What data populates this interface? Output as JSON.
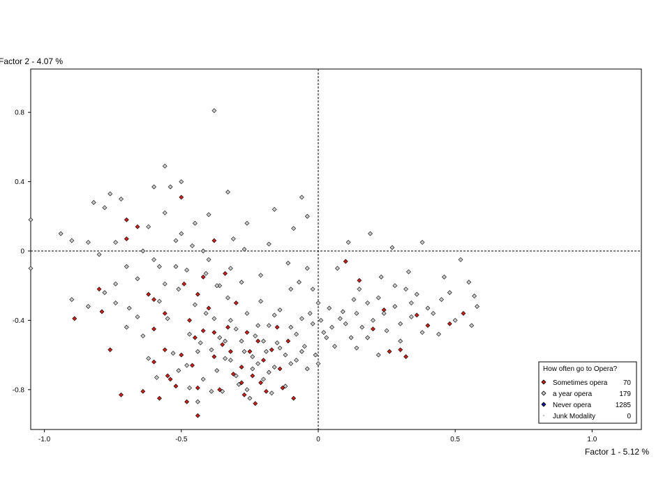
{
  "chart_data": {
    "type": "scatter",
    "xlabel": "Factor 1  -  5.12 %",
    "ylabel": "Factor 2  -  4.07 %",
    "xlim": [
      -1.05,
      1.18
    ],
    "ylim": [
      -1.03,
      1.05
    ],
    "x_ticks": [
      -1.0,
      -0.5,
      0,
      0.5,
      1.0
    ],
    "x_tick_labels": [
      "-1.0",
      "-0.5",
      "0",
      "0.5",
      "1.0"
    ],
    "y_ticks": [
      0.8,
      0.4,
      0,
      -0.4,
      -0.8
    ],
    "y_tick_labels": [
      "0.8",
      "0.4",
      "0",
      "-0.4",
      "-0.8"
    ],
    "reference_lines": {
      "x": 0,
      "y": 0,
      "style": "dashed"
    },
    "grid": false,
    "legend": {
      "title": "How often go to Opera?",
      "position": "bottom-right",
      "entries": [
        {
          "label": "Sometimes opera",
          "count": "70"
        },
        {
          "label": "a year opera",
          "count": "179"
        },
        {
          "label": "Never opera",
          "count": "1285"
        },
        {
          "label": "Junk Modality",
          "count": "0"
        }
      ]
    },
    "series": [
      {
        "name": "Sometimes opera",
        "marker": "diamond",
        "color": "#c8201c",
        "points": [
          [
            -0.89,
            -0.39
          ],
          [
            -0.8,
            -0.22
          ],
          [
            -0.79,
            -0.35
          ],
          [
            -0.76,
            -0.57
          ],
          [
            -0.72,
            -0.83
          ],
          [
            -0.7,
            0.07
          ],
          [
            -0.7,
            0.18
          ],
          [
            -0.66,
            0.14
          ],
          [
            -0.64,
            -0.81
          ],
          [
            -0.62,
            -0.25
          ],
          [
            -0.6,
            -0.28
          ],
          [
            -0.6,
            -0.64
          ],
          [
            -0.58,
            -0.85
          ],
          [
            -0.56,
            -0.57
          ],
          [
            -0.55,
            -0.72
          ],
          [
            -0.52,
            -0.78
          ],
          [
            -0.5,
            -0.6
          ],
          [
            -0.49,
            -0.19
          ],
          [
            -0.48,
            -0.87
          ],
          [
            -0.47,
            -0.4
          ],
          [
            -0.46,
            -0.66
          ],
          [
            -0.45,
            -0.5
          ],
          [
            -0.44,
            -0.79
          ],
          [
            -0.44,
            -0.95
          ],
          [
            -0.42,
            -0.46
          ],
          [
            -0.4,
            -0.33
          ],
          [
            -0.38,
            -0.61
          ],
          [
            -0.38,
            0.06
          ],
          [
            -0.36,
            -0.8
          ],
          [
            -0.35,
            -0.54
          ],
          [
            -0.34,
            -0.13
          ],
          [
            -0.33,
            -0.44
          ],
          [
            -0.32,
            -0.58
          ],
          [
            -0.31,
            -0.71
          ],
          [
            -0.28,
            -0.67
          ],
          [
            -0.27,
            -0.83
          ],
          [
            -0.26,
            -0.47
          ],
          [
            -0.25,
            -0.58
          ],
          [
            -0.24,
            -0.72
          ],
          [
            -0.23,
            -0.88
          ],
          [
            -0.22,
            -0.52
          ],
          [
            -0.21,
            -0.76
          ],
          [
            -0.2,
            -0.63
          ],
          [
            -0.19,
            -0.81
          ],
          [
            -0.17,
            -0.57
          ],
          [
            -0.15,
            -0.44
          ],
          [
            -0.14,
            -0.68
          ],
          [
            -0.13,
            -0.79
          ],
          [
            -0.11,
            -0.52
          ],
          [
            -0.09,
            -0.85
          ],
          [
            -0.5,
            0.31
          ],
          [
            -0.56,
            -0.36
          ],
          [
            -0.44,
            -0.25
          ],
          [
            -0.3,
            -0.3
          ],
          [
            0.15,
            -0.17
          ],
          [
            0.26,
            -0.58
          ],
          [
            0.24,
            -0.34
          ],
          [
            0.3,
            -0.57
          ],
          [
            0.32,
            -0.61
          ],
          [
            0.36,
            -0.37
          ],
          [
            0.4,
            -0.43
          ],
          [
            0.48,
            -0.42
          ],
          [
            0.53,
            -0.36
          ],
          [
            -0.6,
            -0.45
          ],
          [
            -0.54,
            -0.74
          ],
          [
            -0.38,
            -0.47
          ],
          [
            -0.28,
            -0.76
          ],
          [
            -0.42,
            -0.15
          ],
          [
            0.1,
            -0.06
          ],
          [
            0.2,
            -0.45
          ]
        ]
      },
      {
        "name": "a year opera",
        "marker": "diamond",
        "color": "#c8c8c8",
        "points": [
          [
            -1.05,
            0.18
          ],
          [
            -1.05,
            -0.1
          ],
          [
            -0.94,
            0.1
          ],
          [
            -0.9,
            0.06
          ],
          [
            -0.9,
            -0.28
          ],
          [
            -0.84,
            -0.32
          ],
          [
            -0.82,
            0.28
          ],
          [
            -0.8,
            -0.02
          ],
          [
            -0.78,
            0.25
          ],
          [
            -0.76,
            0.33
          ],
          [
            -0.74,
            0.05
          ],
          [
            -0.74,
            -0.19
          ],
          [
            -0.72,
            0.3
          ],
          [
            -0.7,
            -0.09
          ],
          [
            -0.69,
            -0.33
          ],
          [
            -0.66,
            -0.16
          ],
          [
            -0.64,
            -0.49
          ],
          [
            -0.62,
            0.14
          ],
          [
            -0.6,
            -0.05
          ],
          [
            -0.59,
            -0.73
          ],
          [
            -0.58,
            -0.29
          ],
          [
            -0.56,
            -0.19
          ],
          [
            -0.55,
            -0.39
          ],
          [
            -0.54,
            0.37
          ],
          [
            -0.53,
            -0.59
          ],
          [
            -0.52,
            -0.09
          ],
          [
            -0.51,
            -0.22
          ],
          [
            -0.5,
            0.1
          ],
          [
            -0.48,
            -0.66
          ],
          [
            -0.47,
            -0.48
          ],
          [
            -0.46,
            0.03
          ],
          [
            -0.45,
            -0.31
          ],
          [
            -0.44,
            -0.87
          ],
          [
            -0.43,
            -0.53
          ],
          [
            -0.42,
            -0.74
          ],
          [
            -0.41,
            -0.13
          ],
          [
            -0.4,
            0.21
          ],
          [
            -0.39,
            -0.57
          ],
          [
            -0.38,
            -0.39
          ],
          [
            -0.37,
            -0.69
          ],
          [
            -0.36,
            -0.2
          ],
          [
            -0.35,
            -0.81
          ],
          [
            -0.34,
            -0.52
          ],
          [
            -0.33,
            -0.27
          ],
          [
            -0.32,
            -0.63
          ],
          [
            -0.31,
            0.07
          ],
          [
            -0.3,
            -0.45
          ],
          [
            -0.29,
            -0.77
          ],
          [
            -0.28,
            -0.18
          ],
          [
            -0.27,
            -0.58
          ],
          [
            -0.26,
            -0.36
          ],
          [
            -0.25,
            -0.85
          ],
          [
            -0.24,
            -0.68
          ],
          [
            -0.23,
            -0.49
          ],
          [
            -0.22,
            -0.65
          ],
          [
            -0.21,
            -0.29
          ],
          [
            -0.2,
            -0.74
          ],
          [
            -0.19,
            -0.58
          ],
          [
            -0.18,
            -0.43
          ],
          [
            -0.17,
            -0.82
          ],
          [
            -0.16,
            -0.67
          ],
          [
            -0.15,
            -0.53
          ],
          [
            -0.14,
            -0.34
          ],
          [
            -0.12,
            -0.6
          ],
          [
            -0.1,
            -0.44
          ],
          [
            -0.08,
            -0.63
          ],
          [
            -0.06,
            -0.39
          ],
          [
            -0.05,
            -0.55
          ],
          [
            -0.04,
            -0.68
          ],
          [
            -0.02,
            -0.42
          ],
          [
            -0.01,
            -0.6
          ],
          [
            0.02,
            -0.47
          ],
          [
            0.04,
            -0.33
          ],
          [
            0.06,
            -0.55
          ],
          [
            0.08,
            -0.39
          ],
          [
            0.1,
            -0.42
          ],
          [
            0.12,
            -0.5
          ],
          [
            0.14,
            -0.36
          ],
          [
            0.16,
            -0.44
          ],
          [
            0.18,
            -0.3
          ],
          [
            0.2,
            -0.4
          ],
          [
            0.22,
            -0.27
          ],
          [
            0.25,
            -0.46
          ],
          [
            0.28,
            -0.32
          ],
          [
            0.3,
            -0.42
          ],
          [
            0.32,
            -0.22
          ],
          [
            0.34,
            -0.38
          ],
          [
            0.36,
            -0.25
          ],
          [
            0.38,
            -0.47
          ],
          [
            0.4,
            -0.33
          ],
          [
            0.45,
            -0.28
          ],
          [
            0.5,
            -0.4
          ],
          [
            0.55,
            -0.18
          ],
          [
            0.58,
            -0.32
          ],
          [
            -0.38,
            0.81
          ],
          [
            -0.56,
            0.49
          ],
          [
            -0.6,
            0.37
          ],
          [
            -0.52,
            0.06
          ],
          [
            -0.48,
            -0.11
          ],
          [
            -0.42,
            0.0
          ],
          [
            -0.32,
            -0.1
          ],
          [
            -0.26,
            0.16
          ],
          [
            -0.18,
            0.04
          ],
          [
            -0.1,
            -0.22
          ],
          [
            -0.06,
            0.31
          ],
          [
            -0.04,
            -0.1
          ],
          [
            0.0,
            -0.3
          ],
          [
            0.0,
            -0.65
          ],
          [
            -0.02,
            -0.22
          ],
          [
            0.03,
            -0.5
          ],
          [
            0.14,
            -0.56
          ],
          [
            0.22,
            -0.6
          ],
          [
            0.3,
            -0.52
          ],
          [
            0.44,
            -0.48
          ],
          [
            -0.74,
            -0.3
          ],
          [
            -0.66,
            -0.38
          ],
          [
            -0.62,
            -0.62
          ],
          [
            -0.58,
            -0.09
          ],
          [
            -0.51,
            -0.69
          ],
          [
            -0.47,
            -0.79
          ],
          [
            -0.44,
            -0.58
          ],
          [
            -0.41,
            -0.36
          ],
          [
            -0.39,
            -0.81
          ],
          [
            -0.37,
            -0.2
          ],
          [
            -0.36,
            -0.5
          ],
          [
            -0.34,
            -0.62
          ],
          [
            -0.32,
            -0.4
          ],
          [
            -0.3,
            -0.72
          ],
          [
            -0.28,
            -0.52
          ],
          [
            -0.26,
            -0.8
          ],
          [
            -0.24,
            -0.61
          ],
          [
            -0.22,
            -0.43
          ],
          [
            -0.2,
            -0.52
          ],
          [
            -0.18,
            -0.7
          ],
          [
            -0.16,
            -0.37
          ],
          [
            -0.14,
            -0.56
          ],
          [
            -0.12,
            -0.78
          ],
          [
            -0.1,
            -0.65
          ],
          [
            -0.08,
            -0.48
          ],
          [
            -0.06,
            -0.58
          ],
          [
            -0.03,
            -0.36
          ],
          [
            0.01,
            -0.4
          ],
          [
            0.05,
            -0.44
          ],
          [
            0.09,
            -0.35
          ],
          [
            0.13,
            -0.28
          ],
          [
            0.18,
            -0.5
          ],
          [
            0.24,
            -0.36
          ],
          [
            0.28,
            -0.2
          ],
          [
            0.34,
            -0.3
          ],
          [
            0.42,
            -0.36
          ],
          [
            0.48,
            -0.24
          ],
          [
            0.56,
            -0.43
          ],
          [
            -0.84,
            0.05
          ],
          [
            -0.78,
            -0.24
          ],
          [
            -0.7,
            -0.44
          ],
          [
            -0.64,
            0.0
          ],
          [
            -0.56,
            0.22
          ],
          [
            -0.5,
            0.4
          ],
          [
            -0.45,
            0.16
          ],
          [
            -0.4,
            -0.05
          ],
          [
            -0.33,
            0.34
          ],
          [
            -0.27,
            0.01
          ],
          [
            -0.21,
            -0.14
          ],
          [
            -0.16,
            0.24
          ],
          [
            -0.11,
            -0.07
          ],
          [
            -0.09,
            0.13
          ],
          [
            -0.07,
            -0.18
          ],
          [
            -0.04,
            0.2
          ],
          [
            0.07,
            -0.1
          ],
          [
            0.11,
            0.05
          ],
          [
            0.15,
            -0.22
          ],
          [
            0.19,
            0.1
          ],
          [
            0.23,
            -0.15
          ],
          [
            0.27,
            0.02
          ],
          [
            0.33,
            -0.12
          ],
          [
            0.38,
            0.05
          ],
          [
            0.46,
            -0.15
          ],
          [
            0.52,
            -0.05
          ],
          [
            0.57,
            -0.26
          ]
        ]
      },
      {
        "name": "Never opera",
        "marker": "diamond",
        "color": "#1a1a9c",
        "points": []
      },
      {
        "name": "Junk Modality",
        "marker": "dot",
        "color": "#555555",
        "points": []
      }
    ]
  }
}
